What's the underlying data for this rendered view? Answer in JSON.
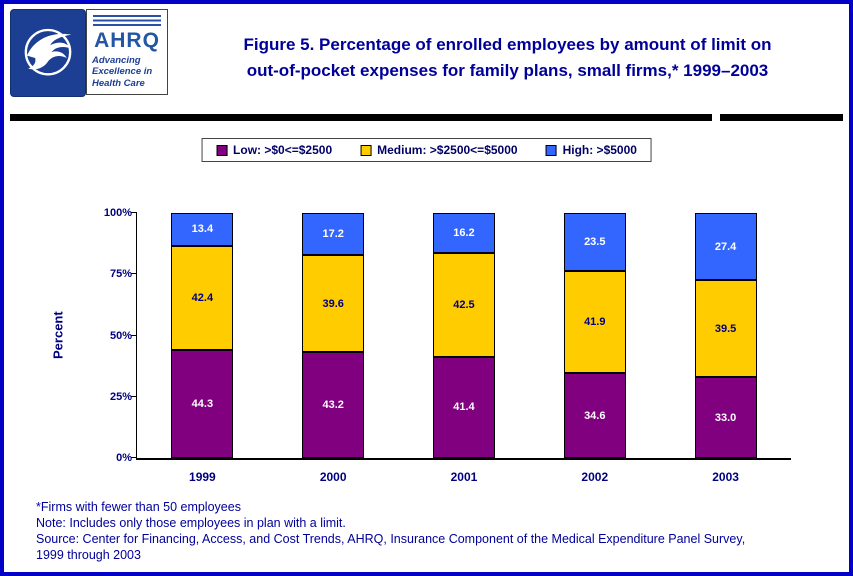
{
  "header": {
    "hhs_logo_name": "hhs-logo",
    "ahrq": {
      "acronym": "AHRQ",
      "tagline": "Advancing Excellence in Health Care"
    },
    "title_line1": "Figure 5. Percentage of enrolled employees by amount of limit on",
    "title_line2": "out-of-pocket expenses for family plans, small firms,* 1999–2003"
  },
  "chart_data": {
    "type": "bar",
    "stacked": true,
    "title": "Figure 5. Percentage of enrolled employees by amount of limit on out-of-pocket expenses for family plans, small firms,* 1999–2003",
    "categories": [
      "1999",
      "2000",
      "2001",
      "2002",
      "2003"
    ],
    "series": [
      {
        "name": "Low: >$0<=$2500",
        "color": "#800080",
        "label_color": "#FFFFFF",
        "values": [
          44.3,
          43.2,
          41.4,
          34.6,
          33.0
        ]
      },
      {
        "name": "Medium: >$2500<=$5000",
        "color": "#FFCC00",
        "label_color": "#000080",
        "values": [
          42.4,
          39.6,
          42.5,
          41.9,
          39.5
        ]
      },
      {
        "name": "High: >$5000",
        "color": "#3366FF",
        "label_color": "#FFFFFF",
        "values": [
          13.4,
          17.2,
          16.2,
          23.5,
          27.4
        ]
      }
    ],
    "xlabel": "",
    "ylabel": "Percent",
    "ylim": [
      0,
      100
    ],
    "yticks": [
      {
        "label": "0%",
        "value": 0
      },
      {
        "label": "25%",
        "value": 25
      },
      {
        "label": "50%",
        "value": 50
      },
      {
        "label": "75%",
        "value": 75
      },
      {
        "label": "100%",
        "value": 100
      }
    ],
    "value_decimals": 1,
    "grid": false,
    "legend_position": "top"
  },
  "footnotes": {
    "line1": "*Firms with fewer than 50 employees",
    "line2": "Note: Includes only those employees in plan with a limit.",
    "line3": "Source: Center for Financing, Access, and Cost Trends, AHRQ, Insurance Component of the Medical Expenditure Panel Survey,",
    "line4": "1999 through 2003"
  }
}
